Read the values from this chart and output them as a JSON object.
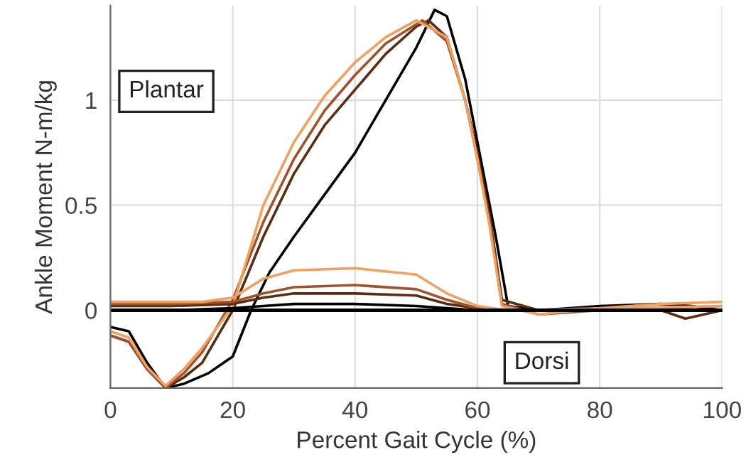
{
  "chart_data": {
    "type": "line",
    "xlabel": "Percent Gait Cycle (%)",
    "ylabel": "Ankle Moment N-m/kg",
    "xlim": [
      0,
      100
    ],
    "ylim": [
      -0.37,
      1.45
    ],
    "xticks": [
      0,
      20,
      40,
      60,
      80,
      100
    ],
    "yticks": [
      0,
      0.5,
      1
    ],
    "grid": true,
    "annotations": [
      "Plantar",
      "Dorsi"
    ],
    "ref_lines": [
      {
        "axis": "y",
        "value": 0,
        "color": "#000000"
      }
    ],
    "series": [
      {
        "color": "#000000",
        "x": [
          0,
          3,
          6,
          9,
          12,
          16,
          20,
          23,
          26,
          30,
          35,
          40,
          45,
          50,
          53,
          55,
          58,
          60,
          63,
          65,
          70,
          80,
          90,
          95,
          100
        ],
        "values": [
          -0.08,
          -0.1,
          -0.25,
          -0.37,
          -0.35,
          -0.3,
          -0.22,
          0,
          0.18,
          0.35,
          0.55,
          0.75,
          1.0,
          1.25,
          1.43,
          1.4,
          1.1,
          0.8,
          0.35,
          0.02,
          0,
          0.02,
          0.03,
          0.02,
          0
        ]
      },
      {
        "color": "#5a2d10",
        "x": [
          0,
          3,
          6,
          9,
          12,
          15,
          20,
          25,
          30,
          35,
          40,
          45,
          50,
          52,
          55,
          58,
          60,
          62,
          64,
          70,
          80,
          90,
          94,
          100
        ],
        "values": [
          -0.12,
          -0.15,
          -0.28,
          -0.37,
          -0.32,
          -0.25,
          0,
          0.35,
          0.65,
          0.88,
          1.05,
          1.22,
          1.35,
          1.38,
          1.3,
          1.0,
          0.75,
          0.45,
          0.05,
          0,
          0,
          0,
          -0.04,
          0
        ]
      },
      {
        "color": "#a0522d",
        "x": [
          0,
          3,
          6,
          9,
          12,
          15,
          20,
          25,
          30,
          35,
          40,
          45,
          51,
          55,
          58,
          60,
          62,
          64,
          70,
          80,
          90,
          100
        ],
        "values": [
          -0.12,
          -0.15,
          -0.28,
          -0.37,
          -0.3,
          -0.2,
          0.05,
          0.42,
          0.72,
          0.95,
          1.12,
          1.27,
          1.38,
          1.28,
          1.0,
          0.72,
          0.42,
          0.03,
          -0.02,
          0,
          0.01,
          0.02
        ]
      },
      {
        "color": "#f0a060",
        "x": [
          0,
          3,
          6,
          9,
          12,
          15,
          20,
          25,
          30,
          35,
          40,
          45,
          50,
          55,
          58,
          60,
          62,
          64,
          70,
          80,
          90,
          100
        ],
        "values": [
          -0.1,
          -0.13,
          -0.27,
          -0.36,
          -0.28,
          -0.18,
          0.02,
          0.5,
          0.8,
          1.02,
          1.18,
          1.3,
          1.38,
          1.3,
          1.0,
          0.72,
          0.4,
          0.02,
          -0.02,
          0.01,
          0.03,
          0.04
        ]
      },
      {
        "color": "#000000",
        "x": [
          0,
          10,
          20,
          25,
          30,
          40,
          50,
          55,
          60,
          65,
          100
        ],
        "values": [
          0,
          0,
          0.01,
          0.02,
          0.03,
          0.03,
          0.02,
          0.01,
          0,
          0,
          0
        ]
      },
      {
        "color": "#5a2d10",
        "x": [
          0,
          10,
          20,
          25,
          30,
          40,
          50,
          55,
          60,
          65,
          100
        ],
        "values": [
          0.02,
          0.02,
          0.03,
          0.06,
          0.08,
          0.08,
          0.07,
          0.03,
          0.01,
          0,
          0
        ]
      },
      {
        "color": "#a0522d",
        "x": [
          0,
          10,
          20,
          25,
          30,
          40,
          50,
          55,
          60,
          65,
          100
        ],
        "values": [
          0.03,
          0.03,
          0.04,
          0.08,
          0.11,
          0.12,
          0.1,
          0.05,
          0.01,
          0,
          0
        ]
      },
      {
        "color": "#f0a060",
        "x": [
          0,
          10,
          15,
          20,
          25,
          30,
          40,
          50,
          55,
          60,
          65,
          100
        ],
        "values": [
          0.04,
          0.04,
          0.04,
          0.06,
          0.15,
          0.19,
          0.2,
          0.17,
          0.08,
          0.02,
          0,
          0.02
        ]
      }
    ]
  }
}
